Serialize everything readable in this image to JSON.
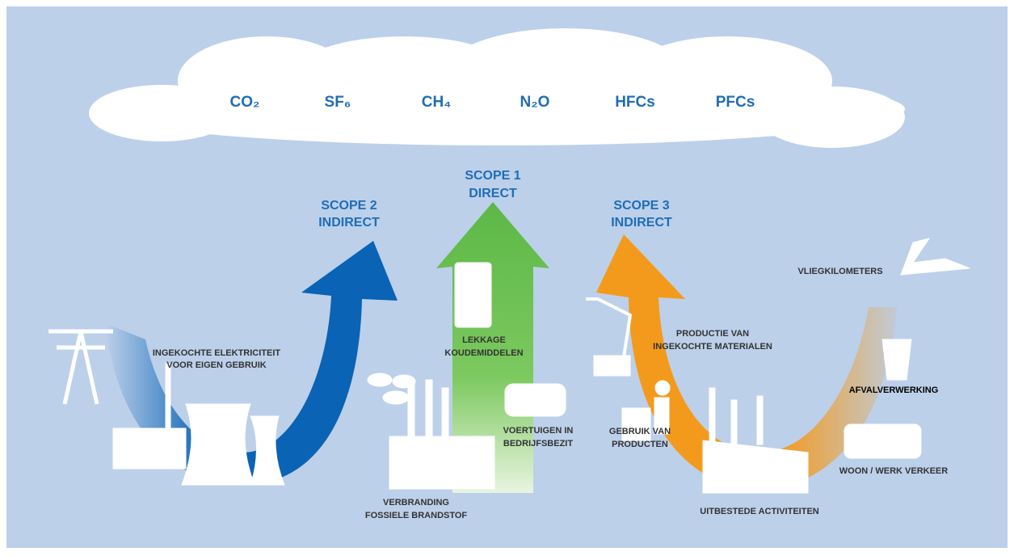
{
  "gases": [
    "CO₂",
    "SF₆",
    "CH₄",
    "N₂O",
    "HFCs",
    "PFCs"
  ],
  "scopes": [
    {
      "title": "SCOPE 2",
      "subtitle": "INDIRECT"
    },
    {
      "title": "SCOPE 1",
      "subtitle": "DIRECT"
    },
    {
      "title": "SCOPE 3",
      "subtitle": "INDIRECT"
    }
  ],
  "labels": [
    {
      "lines": [
        "INGEKOCHTE ELEKTRICITEIT",
        "VOOR EIGEN GEBRUIK"
      ]
    },
    {
      "lines": [
        "LEKKAGE",
        "KOUDEMIDDELEN"
      ]
    },
    {
      "lines": [
        "VOERTUIGEN IN",
        "BEDRIJFSBEZIT"
      ]
    },
    {
      "lines": [
        "VERBRANDING",
        "FOSSIELE BRANDSTOF"
      ]
    },
    {
      "lines": [
        "VLIEGKILOMETERS"
      ]
    },
    {
      "lines": [
        "PRODUCTIE VAN",
        "INGEKOCHTE MATERIALEN"
      ]
    },
    {
      "lines": [
        "AFVALVERWERKING"
      ]
    },
    {
      "lines": [
        "GEBRUIK VAN",
        "PRODUCTEN"
      ]
    },
    {
      "lines": [
        "WOON / WERK VERKEER"
      ]
    },
    {
      "lines": [
        "UITBESTEDE ACTIVITEITEN"
      ]
    }
  ]
}
